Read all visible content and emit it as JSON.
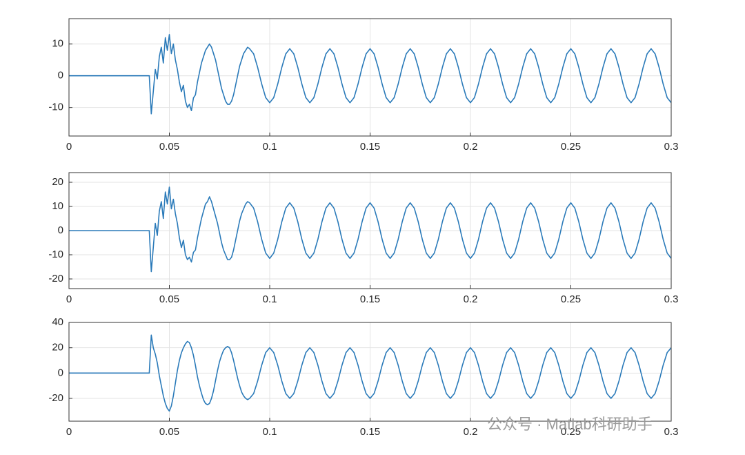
{
  "chart_data": [
    {
      "type": "line",
      "color": "#2a7ab9",
      "grid": true,
      "xlim": [
        0,
        0.3
      ],
      "ylim": [
        -19,
        18
      ],
      "xticks": [
        0,
        0.05,
        0.1,
        0.15,
        0.2,
        0.25,
        0.3
      ],
      "yticks": [
        -10,
        0,
        10
      ],
      "x": [
        0,
        0.04,
        0.041,
        0.042,
        0.043,
        0.044,
        0.045,
        0.046,
        0.047,
        0.048,
        0.049,
        0.05,
        0.051,
        0.052,
        0.053,
        0.054,
        0.055,
        0.056,
        0.057,
        0.058,
        0.059,
        0.06,
        0.061,
        0.062,
        0.063,
        0.064,
        0.065,
        0.066,
        0.067,
        0.068,
        0.069,
        0.07,
        0.071,
        0.072,
        0.073,
        0.074,
        0.075,
        0.076,
        0.077,
        0.078,
        0.079,
        0.08,
        0.081,
        0.082,
        0.083,
        0.084,
        0.085,
        0.086,
        0.087,
        0.088,
        0.089,
        0.09,
        0.092,
        0.094,
        0.096,
        0.098,
        0.1,
        0.102,
        0.104,
        0.106,
        0.108,
        0.11,
        0.112,
        0.114,
        0.116,
        0.118,
        0.12,
        0.122,
        0.124,
        0.126,
        0.128,
        0.13,
        0.132,
        0.134,
        0.136,
        0.138,
        0.14,
        0.142,
        0.144,
        0.146,
        0.148,
        0.15,
        0.152,
        0.154,
        0.156,
        0.158,
        0.16,
        0.162,
        0.164,
        0.166,
        0.168,
        0.17,
        0.172,
        0.174,
        0.176,
        0.178,
        0.18,
        0.182,
        0.184,
        0.186,
        0.188,
        0.19,
        0.192,
        0.194,
        0.196,
        0.198,
        0.2,
        0.202,
        0.204,
        0.206,
        0.208,
        0.21,
        0.212,
        0.214,
        0.216,
        0.218,
        0.22,
        0.222,
        0.224,
        0.226,
        0.228,
        0.23,
        0.232,
        0.234,
        0.236,
        0.238,
        0.24,
        0.242,
        0.244,
        0.246,
        0.248,
        0.25,
        0.252,
        0.254,
        0.256,
        0.258,
        0.26,
        0.262,
        0.264,
        0.266,
        0.268,
        0.27,
        0.272,
        0.274,
        0.276,
        0.278,
        0.28,
        0.282,
        0.284,
        0.286,
        0.288,
        0.29,
        0.292,
        0.294,
        0.296,
        0.298,
        0.3
      ],
      "values": [
        0,
        0,
        -12,
        -5,
        2,
        -1,
        6,
        9,
        4,
        12,
        8,
        13,
        7,
        10,
        5,
        2,
        -2,
        -5,
        -3,
        -8,
        -10,
        -9,
        -11,
        -7,
        -6,
        -2,
        1,
        4,
        6,
        8,
        9,
        10,
        9,
        7,
        5,
        2,
        -1,
        -4,
        -6,
        -8,
        -9,
        -9,
        -8,
        -6,
        -3,
        0,
        3,
        5,
        7,
        8,
        9,
        8.5,
        6.9,
        2.6,
        -2.6,
        -6.9,
        -8.5,
        -6.9,
        -2.6,
        2.6,
        6.9,
        8.5,
        6.9,
        2.6,
        -2.6,
        -6.9,
        -8.5,
        -6.9,
        -2.6,
        2.6,
        6.9,
        8.5,
        6.9,
        2.6,
        -2.6,
        -6.9,
        -8.5,
        -6.9,
        -2.6,
        2.6,
        6.9,
        8.5,
        6.9,
        2.6,
        -2.6,
        -6.9,
        -8.5,
        -6.9,
        -2.6,
        2.6,
        6.9,
        8.5,
        6.9,
        2.6,
        -2.6,
        -6.9,
        -8.5,
        -6.9,
        -2.6,
        2.6,
        6.9,
        8.5,
        6.9,
        2.6,
        -2.6,
        -6.9,
        -8.5,
        -6.9,
        -2.6,
        2.6,
        6.9,
        8.5,
        6.9,
        2.6,
        -2.6,
        -6.9,
        -8.5,
        -6.9,
        -2.6,
        2.6,
        6.9,
        8.5,
        6.9,
        2.6,
        -2.6,
        -6.9,
        -8.5,
        -6.9,
        -2.6,
        2.6,
        6.9,
        8.5,
        6.9,
        2.6,
        -2.6,
        -6.9,
        -8.5,
        -6.9,
        -2.6,
        2.6,
        6.9,
        8.5,
        6.9,
        2.6,
        -2.6,
        -6.9,
        -8.5,
        -6.9,
        -2.6,
        2.6,
        6.9,
        8.5,
        6.9,
        2.6,
        -2.6,
        -6.9,
        -8.5
      ]
    },
    {
      "type": "line",
      "color": "#2a7ab9",
      "grid": true,
      "xlim": [
        0,
        0.3
      ],
      "ylim": [
        -24,
        24
      ],
      "xticks": [
        0,
        0.05,
        0.1,
        0.15,
        0.2,
        0.25,
        0.3
      ],
      "yticks": [
        -20,
        -10,
        0,
        10,
        20
      ],
      "x": [
        0,
        0.04,
        0.041,
        0.042,
        0.043,
        0.044,
        0.045,
        0.046,
        0.047,
        0.048,
        0.049,
        0.05,
        0.051,
        0.052,
        0.053,
        0.054,
        0.055,
        0.056,
        0.057,
        0.058,
        0.059,
        0.06,
        0.061,
        0.062,
        0.063,
        0.064,
        0.065,
        0.066,
        0.067,
        0.068,
        0.069,
        0.07,
        0.071,
        0.072,
        0.073,
        0.074,
        0.075,
        0.076,
        0.077,
        0.078,
        0.079,
        0.08,
        0.081,
        0.082,
        0.083,
        0.084,
        0.085,
        0.086,
        0.087,
        0.088,
        0.089,
        0.09,
        0.092,
        0.094,
        0.096,
        0.098,
        0.1,
        0.102,
        0.104,
        0.106,
        0.108,
        0.11,
        0.112,
        0.114,
        0.116,
        0.118,
        0.12,
        0.122,
        0.124,
        0.126,
        0.128,
        0.13,
        0.132,
        0.134,
        0.136,
        0.138,
        0.14,
        0.142,
        0.144,
        0.146,
        0.148,
        0.15,
        0.152,
        0.154,
        0.156,
        0.158,
        0.16,
        0.162,
        0.164,
        0.166,
        0.168,
        0.17,
        0.172,
        0.174,
        0.176,
        0.178,
        0.18,
        0.182,
        0.184,
        0.186,
        0.188,
        0.19,
        0.192,
        0.194,
        0.196,
        0.198,
        0.2,
        0.202,
        0.204,
        0.206,
        0.208,
        0.21,
        0.212,
        0.214,
        0.216,
        0.218,
        0.22,
        0.222,
        0.224,
        0.226,
        0.228,
        0.23,
        0.232,
        0.234,
        0.236,
        0.238,
        0.24,
        0.242,
        0.244,
        0.246,
        0.248,
        0.25,
        0.252,
        0.254,
        0.256,
        0.258,
        0.26,
        0.262,
        0.264,
        0.266,
        0.268,
        0.27,
        0.272,
        0.274,
        0.276,
        0.278,
        0.28,
        0.282,
        0.284,
        0.286,
        0.288,
        0.29,
        0.292,
        0.294,
        0.296,
        0.298,
        0.3
      ],
      "values": [
        0,
        0,
        -17,
        -7,
        3,
        -2,
        8,
        12,
        5,
        16,
        11,
        18,
        9,
        13,
        7,
        3,
        -3,
        -7,
        -4,
        -10,
        -12,
        -11,
        -13,
        -9,
        -8,
        -3,
        1,
        5,
        8,
        11,
        12,
        14,
        12,
        9,
        6,
        3,
        -1,
        -5,
        -8,
        -10,
        -12,
        -12,
        -11,
        -8,
        -4,
        0,
        4,
        7,
        9,
        11,
        12,
        11.5,
        9.3,
        3.6,
        -3.6,
        -9.3,
        -11.5,
        -9.3,
        -3.6,
        3.6,
        9.3,
        11.5,
        9.3,
        3.6,
        -3.6,
        -9.3,
        -11.5,
        -9.3,
        -3.6,
        3.6,
        9.3,
        11.5,
        9.3,
        3.6,
        -3.6,
        -9.3,
        -11.5,
        -9.3,
        -3.6,
        3.6,
        9.3,
        11.5,
        9.3,
        3.6,
        -3.6,
        -9.3,
        -11.5,
        -9.3,
        -3.6,
        3.6,
        9.3,
        11.5,
        9.3,
        3.6,
        -3.6,
        -9.3,
        -11.5,
        -9.3,
        -3.6,
        3.6,
        9.3,
        11.5,
        9.3,
        3.6,
        -3.6,
        -9.3,
        -11.5,
        -9.3,
        -3.6,
        3.6,
        9.3,
        11.5,
        9.3,
        3.6,
        -3.6,
        -9.3,
        -11.5,
        -9.3,
        -3.6,
        3.6,
        9.3,
        11.5,
        9.3,
        3.6,
        -3.6,
        -9.3,
        -11.5,
        -9.3,
        -3.6,
        3.6,
        9.3,
        11.5,
        9.3,
        3.6,
        -3.6,
        -9.3,
        -11.5,
        -9.3,
        -3.6,
        3.6,
        9.3,
        11.5,
        9.3,
        3.6,
        -3.6,
        -9.3,
        -11.5,
        -9.3,
        -3.6,
        3.6,
        9.3,
        11.5,
        9.3,
        3.6,
        -3.6,
        -9.3,
        -11.5
      ]
    },
    {
      "type": "line",
      "color": "#2a7ab9",
      "grid": true,
      "xlim": [
        0,
        0.3
      ],
      "ylim": [
        -38,
        40
      ],
      "xticks": [
        0,
        0.05,
        0.1,
        0.15,
        0.2,
        0.25,
        0.3
      ],
      "yticks": [
        -20,
        0,
        20,
        40
      ],
      "x": [
        0,
        0.04,
        0.041,
        0.042,
        0.043,
        0.044,
        0.045,
        0.046,
        0.047,
        0.048,
        0.049,
        0.05,
        0.051,
        0.052,
        0.053,
        0.054,
        0.055,
        0.056,
        0.057,
        0.058,
        0.059,
        0.06,
        0.061,
        0.062,
        0.063,
        0.064,
        0.065,
        0.066,
        0.067,
        0.068,
        0.069,
        0.07,
        0.071,
        0.072,
        0.073,
        0.074,
        0.075,
        0.076,
        0.077,
        0.078,
        0.079,
        0.08,
        0.081,
        0.082,
        0.083,
        0.084,
        0.085,
        0.086,
        0.087,
        0.088,
        0.089,
        0.09,
        0.092,
        0.094,
        0.096,
        0.098,
        0.1,
        0.102,
        0.104,
        0.106,
        0.108,
        0.11,
        0.112,
        0.114,
        0.116,
        0.118,
        0.12,
        0.122,
        0.124,
        0.126,
        0.128,
        0.13,
        0.132,
        0.134,
        0.136,
        0.138,
        0.14,
        0.142,
        0.144,
        0.146,
        0.148,
        0.15,
        0.152,
        0.154,
        0.156,
        0.158,
        0.16,
        0.162,
        0.164,
        0.166,
        0.168,
        0.17,
        0.172,
        0.174,
        0.176,
        0.178,
        0.18,
        0.182,
        0.184,
        0.186,
        0.188,
        0.19,
        0.192,
        0.194,
        0.196,
        0.198,
        0.2,
        0.202,
        0.204,
        0.206,
        0.208,
        0.21,
        0.212,
        0.214,
        0.216,
        0.218,
        0.22,
        0.222,
        0.224,
        0.226,
        0.228,
        0.23,
        0.232,
        0.234,
        0.236,
        0.238,
        0.24,
        0.242,
        0.244,
        0.246,
        0.248,
        0.25,
        0.252,
        0.254,
        0.256,
        0.258,
        0.26,
        0.262,
        0.264,
        0.266,
        0.268,
        0.27,
        0.272,
        0.274,
        0.276,
        0.278,
        0.28,
        0.282,
        0.284,
        0.286,
        0.288,
        0.29,
        0.292,
        0.294,
        0.296,
        0.298,
        0.3
      ],
      "values": [
        0,
        0,
        30,
        20,
        15,
        8,
        -2,
        -10,
        -18,
        -24,
        -28,
        -30,
        -26,
        -18,
        -8,
        2,
        10,
        16,
        20,
        23,
        25,
        24,
        20,
        14,
        6,
        -3,
        -10,
        -16,
        -21,
        -24,
        -25,
        -24,
        -20,
        -14,
        -6,
        2,
        9,
        14,
        18,
        20,
        21,
        20,
        16,
        10,
        3,
        -4,
        -10,
        -15,
        -18,
        -20,
        -21,
        -20,
        -16.2,
        -6.2,
        6.2,
        16.2,
        20,
        16.2,
        6.2,
        -6.2,
        -16.2,
        -20,
        -16.2,
        -6.2,
        6.2,
        16.2,
        20,
        16.2,
        6.2,
        -6.2,
        -16.2,
        -20,
        -16.2,
        -6.2,
        6.2,
        16.2,
        20,
        16.2,
        6.2,
        -6.2,
        -16.2,
        -20,
        -16.2,
        -6.2,
        6.2,
        16.2,
        20,
        16.2,
        6.2,
        -6.2,
        -16.2,
        -20,
        -16.2,
        -6.2,
        6.2,
        16.2,
        20,
        16.2,
        6.2,
        -6.2,
        -16.2,
        -20,
        -16.2,
        -6.2,
        6.2,
        16.2,
        20,
        16.2,
        6.2,
        -6.2,
        -16.2,
        -20,
        -16.2,
        -6.2,
        6.2,
        16.2,
        20,
        16.2,
        6.2,
        -6.2,
        -16.2,
        -20,
        -16.2,
        -6.2,
        6.2,
        16.2,
        20,
        16.2,
        6.2,
        -6.2,
        -16.2,
        -20,
        -16.2,
        -6.2,
        6.2,
        16.2,
        20,
        16.2,
        6.2,
        -6.2,
        -16.2,
        -20,
        -16.2,
        -6.2,
        6.2,
        16.2,
        20,
        16.2,
        6.2,
        -6.2,
        -16.2,
        -20,
        -16.2,
        -6.2,
        6.2,
        16.2,
        20
      ]
    }
  ],
  "watermark": "公众号 · Matlab科研助手"
}
